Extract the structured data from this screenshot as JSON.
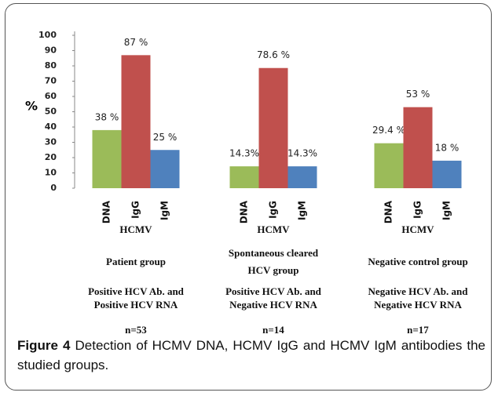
{
  "chart_data": {
    "type": "bar",
    "ylabel": "%",
    "categories": [
      "HCMV",
      "HCMV",
      "HCMV"
    ],
    "groups": [
      {
        "name": [
          "Patient group"
        ],
        "description": [
          "Positive HCV Ab. and",
          "Positive HCV RNA"
        ],
        "n": "n=53"
      },
      {
        "name": [
          "Spontaneous cleared",
          "HCV group"
        ],
        "description": [
          "Positive HCV Ab. and",
          "Negative HCV RNA"
        ],
        "n": "n=14"
      },
      {
        "name": [
          "Negative control group"
        ],
        "description": [
          "Negative HCV Ab. and",
          "Negative HCV RNA"
        ],
        "n": "n=17"
      }
    ],
    "series": [
      {
        "name": "DNA",
        "color": "#9bbb59",
        "values": [
          38,
          14.3,
          29.4
        ],
        "value_labels": [
          "38 %",
          "14.3%",
          "29.4 %"
        ]
      },
      {
        "name": "IgG",
        "color": "#c0504d",
        "values": [
          87,
          78.6,
          53
        ],
        "value_labels": [
          "87 %",
          "78.6 %",
          "53 %"
        ]
      },
      {
        "name": "IgM",
        "color": "#4f81bd",
        "values": [
          25,
          14.3,
          18
        ],
        "value_labels": [
          "25 %",
          "14.3%",
          "18 %"
        ]
      }
    ],
    "ylim": [
      0,
      100
    ],
    "yticks": [
      0,
      10,
      20,
      30,
      40,
      50,
      60,
      70,
      80,
      90,
      100
    ],
    "grid": false,
    "caption": {
      "label": "Figure 4",
      "text": "Detection of HCMV DNA, HCMV IgG and HCMV IgM antibodies the studied groups."
    }
  }
}
